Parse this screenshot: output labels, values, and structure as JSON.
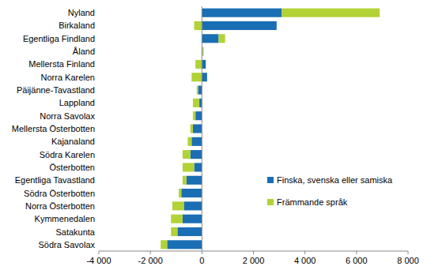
{
  "chart_data": {
    "type": "bar",
    "orientation": "horizontal",
    "stacked": true,
    "grid": false,
    "legend": "lower right",
    "categories": [
      "Nyland",
      "Birkaland",
      "Egentliga Findland",
      "Åland",
      "Mellersta Finland",
      "Norra Karelen",
      "Päijänne-Tavastland",
      "Lappland",
      "Norra Savolax",
      "Mellersta Österbotten",
      "Kajanaland",
      "Södra Karelen",
      "Österbotten",
      "Egentliga Tavastland",
      "Södra Österbotten",
      "Norra Österbotten",
      "Kymmenedalen",
      "Satakunta",
      "Södra Savolax"
    ],
    "series": [
      {
        "name": "Finska, svenska eller samiska",
        "color": "#1a6eb4",
        "values": [
          3100,
          2900,
          650,
          30,
          150,
          200,
          -150,
          -100,
          -250,
          -350,
          -400,
          -450,
          -300,
          -600,
          -800,
          -700,
          -750,
          -950,
          -1350
        ]
      },
      {
        "name": "Främmande språk",
        "color": "#b2d235",
        "values": [
          3800,
          -300,
          250,
          40,
          -250,
          -400,
          -50,
          -250,
          -100,
          -100,
          -150,
          -300,
          -450,
          -150,
          -100,
          -450,
          -450,
          -250,
          -250
        ]
      }
    ],
    "xlim": [
      -4000,
      8000
    ],
    "xticks": [
      {
        "value": -4000,
        "label": "-4 000"
      },
      {
        "value": -2000,
        "label": "-2 000"
      },
      0,
      {
        "value": 2000,
        "label": "2 000"
      },
      {
        "value": 4000,
        "label": "4 000"
      },
      {
        "value": 6000,
        "label": "6 000"
      },
      {
        "value": 8000,
        "label": "8 000"
      }
    ]
  }
}
